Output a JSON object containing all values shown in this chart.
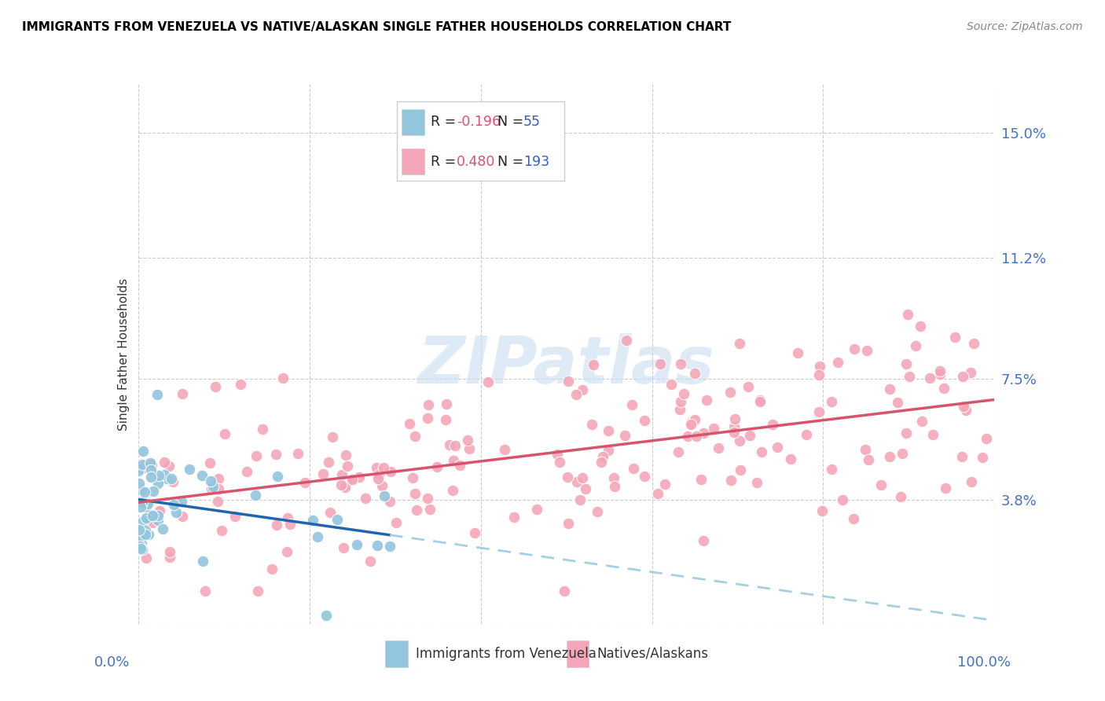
{
  "title": "IMMIGRANTS FROM VENEZUELA VS NATIVE/ALASKAN SINGLE FATHER HOUSEHOLDS CORRELATION CHART",
  "source": "Source: ZipAtlas.com",
  "ylabel": "Single Father Households",
  "ytick_positions": [
    0.0,
    3.8,
    7.5,
    11.2,
    15.0
  ],
  "ytick_labels": [
    "",
    "3.8%",
    "7.5%",
    "11.2%",
    "15.0%"
  ],
  "xlim": [
    0,
    100
  ],
  "ylim": [
    0,
    16.5
  ],
  "blue_color": "#92c5de",
  "blue_line_color": "#2166ac",
  "pink_color": "#f4a6b8",
  "pink_line_color": "#d6546e",
  "dashed_line_color": "#a8cfe0",
  "background_color": "#ffffff",
  "watermark_text": "ZIPatlas",
  "watermark_color": "#c8dff0",
  "axis_label_color": "#4472C4",
  "legend_r1_label": "R = ",
  "legend_r1_val": "-0.196",
  "legend_n1_label": "N = ",
  "legend_n1_val": "55",
  "legend_r2_label": "R = ",
  "legend_r2_val": "0.480",
  "legend_n2_label": "N = ",
  "legend_n2_val": "193",
  "r_val_color": "#e05070",
  "n_val_color": "#3060c0",
  "legend_text_color": "#222222",
  "bottom_legend_label1": "Immigrants from Venezuela",
  "bottom_legend_label2": "Natives/Alaskans"
}
